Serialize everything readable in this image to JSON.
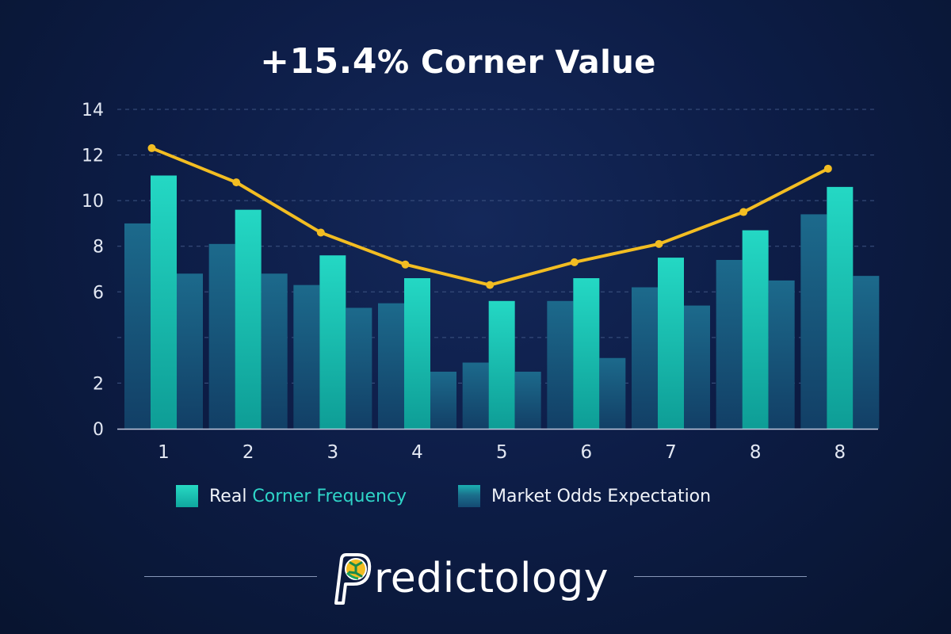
{
  "title": {
    "value_text": "+15.4",
    "pct_text": "%",
    "rest_text": " Corner Value"
  },
  "legend": {
    "real_prefix": "Real ",
    "real_highlight": "Corner Frequency",
    "market": "Market Odds Expectation"
  },
  "brand": {
    "name": "redictology"
  },
  "colors": {
    "real_bar": "#13bfae",
    "market_bar": "#17557c",
    "line": "#f2bd22",
    "grid": "#3e5482",
    "axis": "#c3cbe0",
    "background": "#0d1d47"
  },
  "chart_data": {
    "type": "bar",
    "categories": [
      "1",
      "2",
      "3",
      "4",
      "5",
      "6",
      "7",
      "8",
      "8"
    ],
    "series": [
      {
        "values": [
          9.0,
          8.1,
          6.3,
          5.5,
          2.9,
          5.6,
          6.2,
          7.4,
          9.4
        ]
      },
      {
        "name": "Real Corner Frequency",
        "values": [
          11.1,
          9.6,
          7.6,
          6.6,
          5.6,
          6.6,
          7.5,
          8.7,
          10.6
        ]
      },
      {
        "name": "Market Odds Expectation",
        "values": [
          6.8,
          6.8,
          5.3,
          2.5,
          2.5,
          3.1,
          5.4,
          6.5,
          6.7
        ]
      }
    ],
    "line": {
      "type": "line",
      "values": [
        12.3,
        10.8,
        8.6,
        7.2,
        6.3,
        7.3,
        8.1,
        9.5,
        11.4
      ]
    },
    "y_ticks": [
      "0",
      "2",
      "6",
      "8",
      "10",
      "12",
      "14"
    ],
    "ylim": [
      0,
      14
    ],
    "grid": true,
    "legend_position": "bottom"
  }
}
